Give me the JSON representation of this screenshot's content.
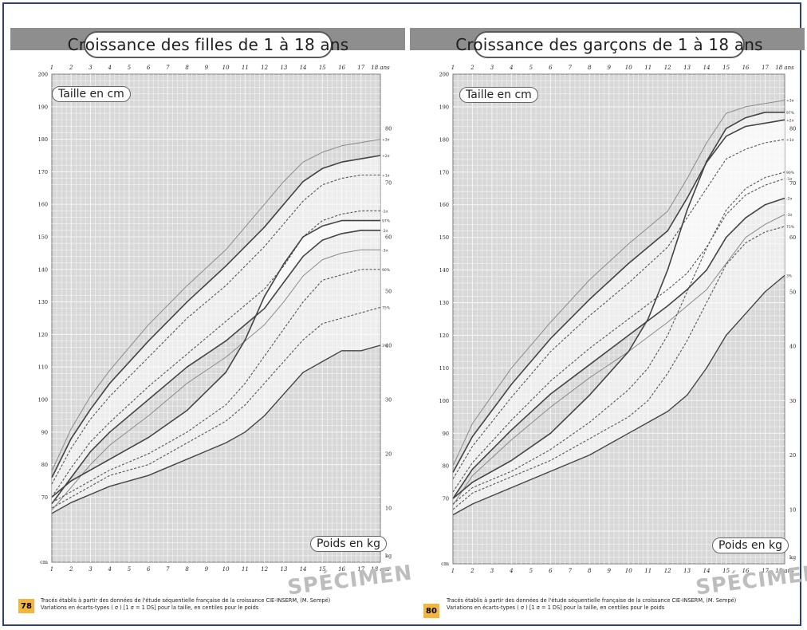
{
  "pages": [
    {
      "id": "girls",
      "title": "Croissance des filles de 1 à 18 ans",
      "height_label": "Taille en cm",
      "weight_label": "Poids en kg",
      "page_number": "78",
      "footer_line1": "Tracés établis à partir des données de l'étude séquentielle française de la croissance CIE-INSERM, (M. Sempé)",
      "footer_line2": "Variations en écarts-types ( σ ) [1 σ = 1 DS] pour la taille, en centiles pour le poids",
      "watermark": "SPÉCIMEN"
    },
    {
      "id": "boys",
      "title": "Croissance des garçons de 1 à 18 ans",
      "height_label": "Taille en cm",
      "weight_label": "Poids en kg",
      "page_number": "80",
      "footer_line1": "Tracés établis à partir des données de l'étude séquentielle française de la croissance CIE-INSERM, (M. Sempé)",
      "footer_line2": "Variations en écarts-types ( σ ) [1 σ = 1 DS] pour la taille, en centiles pour le poids",
      "watermark": "SPÉCIMEN"
    }
  ],
  "chart_data": [
    {
      "type": "line",
      "title": "Croissance des filles de 1 à 18 ans",
      "x_ticks": [
        "1",
        "2",
        "3",
        "4",
        "5",
        "6",
        "7",
        "8",
        "9",
        "10",
        "11",
        "12",
        "13",
        "14",
        "15",
        "16",
        "17",
        "18 ans"
      ],
      "x_range": [
        1,
        18
      ],
      "height_axis": {
        "label": "Taille en cm",
        "unit": "cm",
        "range": [
          50,
          200
        ],
        "tick_labels": [
          "70",
          "80",
          "90",
          "100",
          "110",
          "120",
          "130",
          "140",
          "150",
          "160",
          "170",
          "180",
          "190",
          "200"
        ]
      },
      "weight_axis": {
        "label": "Poids en kg",
        "unit": "kg",
        "range": [
          0,
          90
        ],
        "tick_labels": [
          "10",
          "20",
          "30",
          "40",
          "50",
          "60",
          "70",
          "80"
        ]
      },
      "grid": true,
      "height_series": [
        {
          "name": "+3σ",
          "x": [
            1,
            2,
            3,
            4,
            6,
            8,
            10,
            12,
            13,
            14,
            15,
            16,
            17,
            18
          ],
          "y": [
            78,
            91,
            101,
            109,
            123,
            135,
            146,
            160,
            167,
            173,
            176,
            178,
            179,
            180
          ]
        },
        {
          "name": "+2σ",
          "x": [
            1,
            2,
            3,
            4,
            6,
            8,
            10,
            12,
            13,
            14,
            15,
            16,
            17,
            18
          ],
          "y": [
            76,
            88,
            97,
            105,
            118,
            130,
            141,
            153,
            160,
            167,
            171,
            173,
            174,
            175
          ]
        },
        {
          "name": "+1σ",
          "x": [
            1,
            2,
            3,
            4,
            6,
            8,
            10,
            12,
            13,
            14,
            15,
            16,
            17,
            18
          ],
          "y": [
            74,
            85,
            94,
            101,
            113,
            125,
            135,
            147,
            154,
            161,
            166,
            168,
            169,
            169
          ]
        },
        {
          "name": "-1σ",
          "x": [
            1,
            2,
            3,
            4,
            6,
            8,
            10,
            12,
            13,
            14,
            15,
            16,
            17,
            18
          ],
          "y": [
            70,
            79,
            87,
            93,
            104,
            114,
            124,
            134,
            141,
            150,
            155,
            157,
            158,
            158
          ]
        },
        {
          "name": "-2σ",
          "x": [
            1,
            2,
            3,
            4,
            6,
            8,
            10,
            12,
            13,
            14,
            15,
            16,
            17,
            18
          ],
          "y": [
            68,
            76,
            84,
            90,
            100,
            110,
            118,
            128,
            136,
            144,
            149,
            151,
            152,
            152
          ]
        },
        {
          "name": "-3σ",
          "x": [
            1,
            2,
            3,
            4,
            6,
            8,
            10,
            12,
            13,
            14,
            15,
            16,
            17,
            18
          ],
          "y": [
            66,
            73,
            80,
            86,
            95,
            105,
            113,
            123,
            130,
            138,
            143,
            145,
            146,
            146
          ]
        }
      ],
      "weight_series": [
        {
          "name": "97%",
          "x": [
            1,
            2,
            4,
            6,
            8,
            10,
            11,
            12,
            13,
            14,
            15,
            16,
            17,
            18
          ],
          "y": [
            12,
            15,
            19,
            23,
            28,
            35,
            41,
            49,
            55,
            60,
            62,
            63,
            63,
            63
          ]
        },
        {
          "name": "90%",
          "x": [
            1,
            2,
            4,
            6,
            8,
            10,
            11,
            12,
            13,
            14,
            15,
            16,
            17,
            18
          ],
          "y": [
            11,
            13,
            17,
            20,
            24,
            29,
            33,
            38,
            43,
            48,
            52,
            53,
            54,
            54
          ]
        },
        {
          "name": "75%",
          "x": [
            1,
            2,
            4,
            6,
            8,
            10,
            11,
            12,
            13,
            14,
            15,
            16,
            17,
            18
          ],
          "y": [
            10,
            12,
            16,
            18,
            22,
            26,
            29,
            33,
            37,
            41,
            44,
            45,
            46,
            47
          ]
        },
        {
          "name": "3%",
          "x": [
            1,
            2,
            4,
            6,
            8,
            10,
            11,
            12,
            13,
            14,
            15,
            16,
            17,
            18
          ],
          "y": [
            9,
            11,
            14,
            16,
            19,
            22,
            24,
            27,
            31,
            35,
            37,
            39,
            39,
            40
          ]
        }
      ]
    },
    {
      "type": "line",
      "title": "Croissance des garçons de 1 à 18 ans",
      "x_ticks": [
        "1",
        "2",
        "3",
        "4",
        "5",
        "6",
        "7",
        "8",
        "9",
        "10",
        "11",
        "12",
        "13",
        "14",
        "15",
        "16",
        "17",
        "18 ans"
      ],
      "x_range": [
        1,
        18
      ],
      "height_axis": {
        "label": "Taille en cm",
        "unit": "cm",
        "range": [
          50,
          200
        ],
        "tick_labels": [
          "70",
          "80",
          "90",
          "100",
          "110",
          "120",
          "130",
          "140",
          "150",
          "160",
          "170",
          "180",
          "190",
          "200"
        ]
      },
      "weight_axis": {
        "label": "Poids en kg",
        "unit": "kg",
        "range": [
          0,
          90
        ],
        "tick_labels": [
          "10",
          "20",
          "30",
          "40",
          "50",
          "60",
          "70",
          "80"
        ]
      },
      "grid": true,
      "height_series": [
        {
          "name": "+3σ",
          "x": [
            1,
            2,
            4,
            6,
            8,
            10,
            12,
            13,
            14,
            15,
            16,
            17,
            18
          ],
          "y": [
            80,
            93,
            110,
            124,
            137,
            148,
            158,
            168,
            179,
            188,
            190,
            191,
            192
          ]
        },
        {
          "name": "+2σ",
          "x": [
            1,
            2,
            4,
            6,
            8,
            10,
            12,
            13,
            14,
            15,
            16,
            17,
            18
          ],
          "y": [
            78,
            89,
            105,
            119,
            131,
            142,
            152,
            162,
            173,
            181,
            184,
            185,
            186
          ]
        },
        {
          "name": "+1σ",
          "x": [
            1,
            2,
            4,
            6,
            8,
            10,
            12,
            13,
            14,
            15,
            16,
            17,
            18
          ],
          "y": [
            76,
            86,
            101,
            115,
            126,
            136,
            147,
            156,
            165,
            174,
            177,
            179,
            180
          ]
        },
        {
          "name": "-1σ",
          "x": [
            1,
            2,
            4,
            6,
            8,
            10,
            12,
            13,
            14,
            15,
            16,
            17,
            18
          ],
          "y": [
            72,
            81,
            94,
            106,
            116,
            125,
            134,
            139,
            147,
            157,
            163,
            166,
            168
          ]
        },
        {
          "name": "-2σ",
          "x": [
            1,
            2,
            4,
            6,
            8,
            10,
            12,
            13,
            14,
            15,
            16,
            17,
            18
          ],
          "y": [
            70,
            79,
            91,
            102,
            111,
            120,
            129,
            134,
            140,
            150,
            156,
            160,
            162
          ]
        },
        {
          "name": "-3σ",
          "x": [
            1,
            2,
            4,
            6,
            8,
            10,
            12,
            13,
            14,
            15,
            16,
            17,
            18
          ],
          "y": [
            68,
            77,
            88,
            98,
            107,
            115,
            124,
            129,
            134,
            142,
            150,
            154,
            157
          ]
        }
      ],
      "weight_series": [
        {
          "name": "97%",
          "x": [
            1,
            2,
            4,
            6,
            8,
            10,
            11,
            12,
            13,
            14,
            15,
            16,
            17,
            18
          ],
          "y": [
            12,
            15,
            19,
            24,
            31,
            39,
            45,
            54,
            65,
            74,
            80,
            82,
            83,
            83
          ]
        },
        {
          "name": "90%",
          "x": [
            1,
            2,
            4,
            6,
            8,
            10,
            11,
            12,
            13,
            14,
            15,
            16,
            17,
            18
          ],
          "y": [
            11,
            14,
            17,
            21,
            26,
            32,
            36,
            42,
            50,
            58,
            65,
            69,
            71,
            72
          ]
        },
        {
          "name": "75%",
          "x": [
            1,
            2,
            4,
            6,
            8,
            10,
            11,
            12,
            13,
            14,
            15,
            16,
            17,
            18
          ],
          "y": [
            10,
            13,
            16,
            19,
            23,
            27,
            30,
            35,
            41,
            48,
            55,
            59,
            61,
            62
          ]
        },
        {
          "name": "3%",
          "x": [
            1,
            2,
            4,
            6,
            8,
            10,
            11,
            12,
            13,
            14,
            15,
            16,
            17,
            18
          ],
          "y": [
            9,
            11,
            14,
            17,
            20,
            24,
            26,
            28,
            31,
            36,
            42,
            46,
            50,
            53
          ]
        }
      ]
    }
  ]
}
